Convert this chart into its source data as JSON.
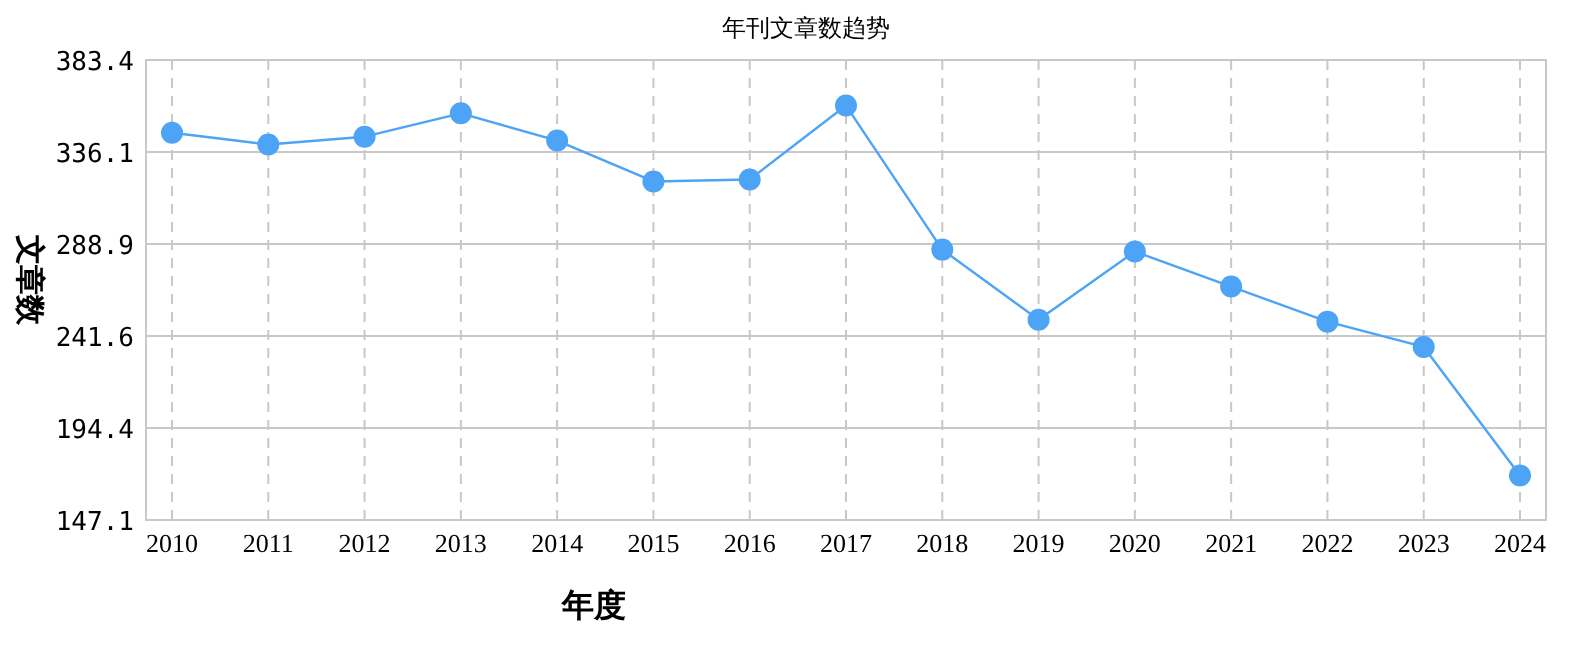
{
  "chart_data": {
    "type": "line",
    "title": "年刊文章数趋势",
    "xlabel": "年度",
    "ylabel": "文章数",
    "categories": [
      "2010",
      "2011",
      "2012",
      "2013",
      "2014",
      "2015",
      "2016",
      "2017",
      "2018",
      "2019",
      "2020",
      "2021",
      "2022",
      "2023",
      "2024"
    ],
    "series": [
      {
        "color": "#4da3f5",
        "values": [
          346,
          340,
          344,
          356,
          342,
          321,
          322,
          360,
          286,
          250,
          285,
          267,
          249,
          236,
          170
        ]
      }
    ],
    "ylim": [
      147.1,
      383.4
    ],
    "yticks": [
      147.1,
      194.4,
      241.6,
      288.9,
      336.1,
      383.4
    ],
    "grid": true,
    "marker": "circle",
    "line_style": "solid"
  }
}
